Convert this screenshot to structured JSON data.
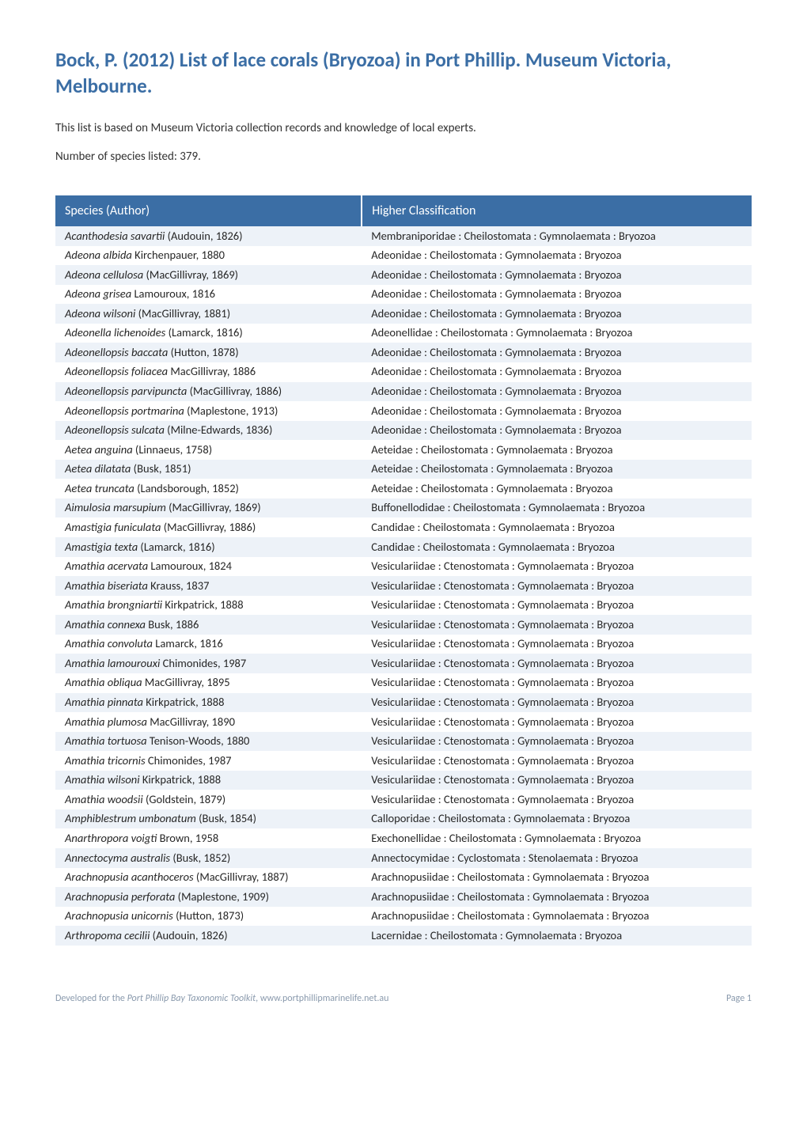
{
  "title": "Bock, P. (2012) List of lace corals (Bryozoa) in Port Phillip. Museum Victoria, Melbourne.",
  "intro": "This list is based on Museum Victoria collection records and knowledge of local experts.",
  "count_label": "Number of species listed: 379.",
  "colors": {
    "title": "#3b6ea5",
    "header_bg": "#3b6ea5",
    "header_text": "#ffffff",
    "row_odd_bg": "#edf2f8",
    "row_even_bg": "#ffffff",
    "body_text": "#333333",
    "footer_text": "#8a9aad"
  },
  "typography": {
    "title_fontsize": 25,
    "body_fontsize": 15,
    "table_fontsize": 14.5,
    "header_fontsize": 16,
    "footer_fontsize": 12,
    "font_family": "Calibri"
  },
  "table": {
    "type": "table",
    "columns": [
      "Species (Author)",
      "Higher Classification"
    ],
    "col_widths": [
      "44%",
      "56%"
    ],
    "rows": [
      {
        "sp": "Acanthodesia savartii",
        "auth": "(Audouin, 1826)",
        "cls": "Membraniporidae : Cheilostomata : Gymnolaemata : Bryozoa"
      },
      {
        "sp": "Adeona albida",
        "auth": "Kirchenpauer, 1880",
        "cls": "Adeonidae : Cheilostomata : Gymnolaemata : Bryozoa"
      },
      {
        "sp": "Adeona cellulosa",
        "auth": "(MacGillivray, 1869)",
        "cls": "Adeonidae : Cheilostomata : Gymnolaemata : Bryozoa"
      },
      {
        "sp": "Adeona grisea",
        "auth": "Lamouroux, 1816",
        "cls": "Adeonidae : Cheilostomata : Gymnolaemata : Bryozoa"
      },
      {
        "sp": "Adeona wilsoni",
        "auth": "(MacGillivray, 1881)",
        "cls": "Adeonidae : Cheilostomata : Gymnolaemata : Bryozoa"
      },
      {
        "sp": "Adeonella lichenoides",
        "auth": "(Lamarck, 1816)",
        "cls": "Adeonellidae : Cheilostomata : Gymnolaemata : Bryozoa"
      },
      {
        "sp": "Adeonellopsis baccata",
        "auth": "(Hutton, 1878)",
        "cls": "Adeonidae : Cheilostomata : Gymnolaemata : Bryozoa"
      },
      {
        "sp": "Adeonellopsis foliacea",
        "auth": "MacGillivray, 1886",
        "cls": "Adeonidae : Cheilostomata : Gymnolaemata : Bryozoa"
      },
      {
        "sp": "Adeonellopsis parvipuncta",
        "auth": "(MacGillivray, 1886)",
        "cls": "Adeonidae : Cheilostomata : Gymnolaemata : Bryozoa"
      },
      {
        "sp": "Adeonellopsis portmarina",
        "auth": "(Maplestone, 1913)",
        "cls": "Adeonidae : Cheilostomata : Gymnolaemata : Bryozoa"
      },
      {
        "sp": "Adeonellopsis sulcata",
        "auth": "(Milne-Edwards, 1836)",
        "cls": "Adeonidae : Cheilostomata : Gymnolaemata : Bryozoa"
      },
      {
        "sp": "Aetea anguina",
        "auth": "(Linnaeus, 1758)",
        "cls": "Aeteidae : Cheilostomata : Gymnolaemata : Bryozoa"
      },
      {
        "sp": "Aetea dilatata",
        "auth": "(Busk, 1851)",
        "cls": "Aeteidae : Cheilostomata : Gymnolaemata : Bryozoa"
      },
      {
        "sp": "Aetea truncata",
        "auth": "(Landsborough, 1852)",
        "cls": "Aeteidae : Cheilostomata : Gymnolaemata : Bryozoa"
      },
      {
        "sp": "Aimulosia marsupium",
        "auth": "(MacGillivray, 1869)",
        "cls": "Buffonellodidae : Cheilostomata : Gymnolaemata : Bryozoa"
      },
      {
        "sp": "Amastigia funiculata",
        "auth": "(MacGillivray, 1886)",
        "cls": "Candidae : Cheilostomata : Gymnolaemata : Bryozoa"
      },
      {
        "sp": "Amastigia texta",
        "auth": "(Lamarck, 1816)",
        "cls": "Candidae : Cheilostomata : Gymnolaemata : Bryozoa"
      },
      {
        "sp": "Amathia acervata",
        "auth": "Lamouroux, 1824",
        "cls": "Vesiculariidae : Ctenostomata : Gymnolaemata : Bryozoa"
      },
      {
        "sp": "Amathia biseriata",
        "auth": "Krauss, 1837",
        "cls": "Vesiculariidae : Ctenostomata : Gymnolaemata : Bryozoa"
      },
      {
        "sp": "Amathia brongniartii",
        "auth": "Kirkpatrick, 1888",
        "cls": "Vesiculariidae : Ctenostomata : Gymnolaemata : Bryozoa"
      },
      {
        "sp": "Amathia connexa",
        "auth": "Busk, 1886",
        "cls": "Vesiculariidae : Ctenostomata : Gymnolaemata : Bryozoa"
      },
      {
        "sp": "Amathia convoluta",
        "auth": "Lamarck, 1816",
        "cls": "Vesiculariidae : Ctenostomata : Gymnolaemata : Bryozoa"
      },
      {
        "sp": "Amathia lamourouxi",
        "auth": "Chimonides, 1987",
        "cls": "Vesiculariidae : Ctenostomata : Gymnolaemata : Bryozoa"
      },
      {
        "sp": "Amathia obliqua",
        "auth": "MacGillivray, 1895",
        "cls": "Vesiculariidae : Ctenostomata : Gymnolaemata : Bryozoa"
      },
      {
        "sp": "Amathia pinnata",
        "auth": "Kirkpatrick, 1888",
        "cls": "Vesiculariidae : Ctenostomata : Gymnolaemata : Bryozoa"
      },
      {
        "sp": "Amathia plumosa",
        "auth": "MacGillivray, 1890",
        "cls": "Vesiculariidae : Ctenostomata : Gymnolaemata : Bryozoa"
      },
      {
        "sp": "Amathia tortuosa",
        "auth": "Tenison-Woods, 1880",
        "cls": "Vesiculariidae : Ctenostomata : Gymnolaemata : Bryozoa"
      },
      {
        "sp": "Amathia tricornis",
        "auth": "Chimonides, 1987",
        "cls": "Vesiculariidae : Ctenostomata : Gymnolaemata : Bryozoa"
      },
      {
        "sp": "Amathia wilsoni",
        "auth": "Kirkpatrick, 1888",
        "cls": "Vesiculariidae : Ctenostomata : Gymnolaemata : Bryozoa"
      },
      {
        "sp": "Amathia woodsii",
        "auth": "(Goldstein, 1879)",
        "cls": "Vesiculariidae : Ctenostomata : Gymnolaemata : Bryozoa"
      },
      {
        "sp": "Amphiblestrum umbonatum",
        "auth": "(Busk, 1854)",
        "cls": "Calloporidae : Cheilostomata : Gymnolaemata : Bryozoa"
      },
      {
        "sp": "Anarthropora voigti",
        "auth": "Brown, 1958",
        "cls": "Exechonellidae : Cheilostomata : Gymnolaemata : Bryozoa"
      },
      {
        "sp": "Annectocyma australis",
        "auth": "(Busk, 1852)",
        "cls": "Annectocymidae : Cyclostomata : Stenolaemata : Bryozoa"
      },
      {
        "sp": "Arachnopusia acanthoceros",
        "auth": "(MacGillivray, 1887)",
        "cls": "Arachnopusiidae : Cheilostomata : Gymnolaemata : Bryozoa"
      },
      {
        "sp": "Arachnopusia perforata",
        "auth": "(Maplestone, 1909)",
        "cls": "Arachnopusiidae : Cheilostomata : Gymnolaemata : Bryozoa"
      },
      {
        "sp": "Arachnopusia unicornis",
        "auth": "(Hutton, 1873)",
        "cls": "Arachnopusiidae : Cheilostomata : Gymnolaemata : Bryozoa"
      },
      {
        "sp": "Arthropoma cecilii",
        "auth": "(Audouin, 1826)",
        "cls": "Lacernidae : Cheilostomata : Gymnolaemata : Bryozoa"
      }
    ]
  },
  "footer": {
    "left_prefix": "Developed for the ",
    "left_italic": "Port Phillip Bay Taxonomic Toolkit",
    "left_suffix": ", www.portphillipmarinelife.net.au",
    "right": "Page 1"
  }
}
